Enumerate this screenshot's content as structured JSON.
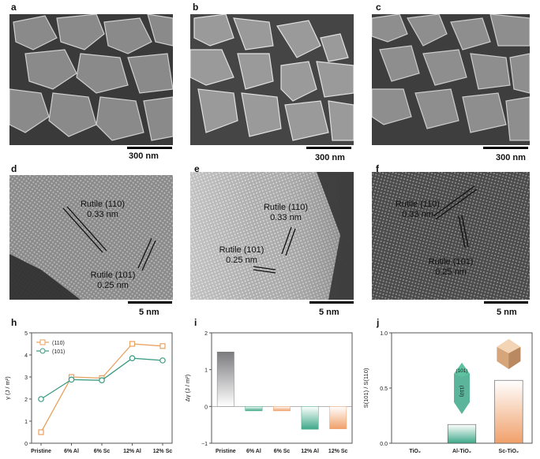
{
  "panel_labels": [
    "a",
    "b",
    "c",
    "d",
    "e",
    "f",
    "h",
    "i",
    "j"
  ],
  "scale_bars": {
    "a": "300 nm",
    "b": "300 nm",
    "c": "300 nm",
    "d": "5 nm",
    "e": "5 nm",
    "f": "5 nm"
  },
  "hrtem": {
    "d": {
      "ann1_line1": "Rutile (110)",
      "ann1_line2": "0.33 nm",
      "ann2_line1": "Rutile (101)",
      "ann2_line2": "0.25 nm"
    },
    "e": {
      "ann1_line1": "Rutile (110)",
      "ann1_line2": "0.33 nm",
      "ann2_line1": "Rutile (101)",
      "ann2_line2": "0.25 nm"
    },
    "f": {
      "ann1_line1": "Rutile (110)",
      "ann1_line2": "0.33 nm",
      "ann2_line1": "Rutile (101)",
      "ann2_line2": "0.25 nm"
    }
  },
  "crystal_labels": {
    "top": "(101)",
    "side": "(110)"
  },
  "colors": {
    "series_110": "#e8a15e",
    "series_101": "#3a9a82",
    "pristine_bar": "#7b7b7e",
    "al_bar": "#3ea888",
    "sc_bar": "#f0a06a"
  },
  "chart_data": [
    {
      "type": "line",
      "panel": "h",
      "ylabel": "γ (J / m²)",
      "ylim": [
        0,
        5
      ],
      "yticks": [
        "0",
        "1",
        "2",
        "3",
        "4",
        "5"
      ],
      "categories": [
        "Pristine",
        "6% Al",
        "6% Sc",
        "12% Al",
        "12% Sc"
      ],
      "series": [
        {
          "name": "(110)",
          "values": [
            0.5,
            3.0,
            2.95,
            4.5,
            4.4
          ]
        },
        {
          "name": "(101)",
          "values": [
            2.0,
            2.88,
            2.85,
            3.85,
            3.75
          ]
        }
      ],
      "legend": "top-left"
    },
    {
      "type": "bar",
      "panel": "i",
      "ylabel": "Δγ (J / m²)",
      "ylim": [
        -1,
        2
      ],
      "yticks": [
        "−1",
        "0",
        "1",
        "2"
      ],
      "categories": [
        "Pristine",
        "6% Al",
        "6% Sc",
        "12% Al",
        "12% Sc"
      ],
      "values": [
        1.48,
        -0.12,
        -0.12,
        -0.62,
        -0.61
      ]
    },
    {
      "type": "bar",
      "panel": "j",
      "ylabel": "S(101) / S(110)",
      "ylim": [
        0,
        1.0
      ],
      "yticks": [
        "0.0",
        "0.5",
        "1.0"
      ],
      "categories": [
        "TiO₂",
        "Al-TiO₂",
        "Sc-TiO₂"
      ],
      "values": [
        0,
        0.17,
        0.57
      ]
    }
  ]
}
